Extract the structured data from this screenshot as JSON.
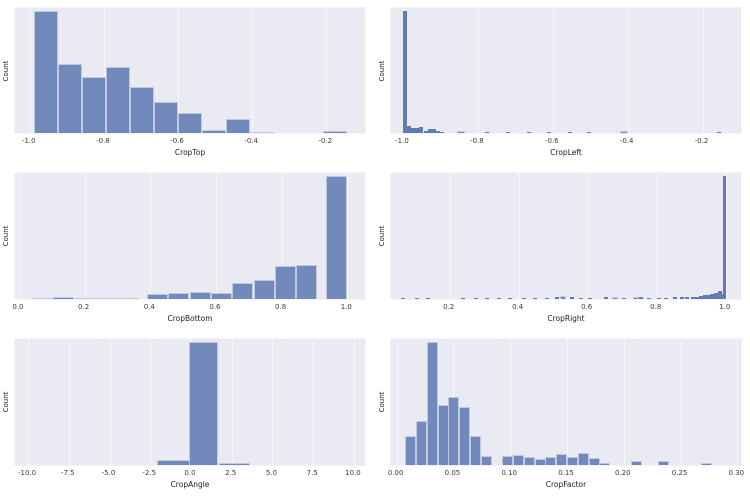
{
  "figure": {
    "type": "histogram-grid",
    "grid_shape": "3 rows x 2 cols",
    "bar_height_units": "fraction of axes height (y axis shows no numeric tick labels, only the label 'Count')",
    "colors": {
      "figure_bg": "#ffffff",
      "axes_bg": "#e9eaf2",
      "grid": "#ffffff",
      "bar_fill": "#7289bc",
      "bar_fill_narrow": "#617cb2",
      "bar_edge": "rgba(255,255,255,0.55)",
      "tick_text": "#3a3a3a",
      "label_text": "#1c1c1c"
    }
  },
  "chart_data": [
    {
      "type": "bar",
      "subtype": "histogram",
      "xlabel": "CropTop",
      "ylabel": "Count",
      "grid": "vertical gridlines only",
      "legend": null,
      "xlim": [
        -1.04,
        -0.09
      ],
      "xticks": [
        {
          "v": -1.0,
          "label": "-1.0"
        },
        {
          "v": -0.8,
          "label": "-0.8"
        },
        {
          "v": -0.6,
          "label": "-0.6"
        },
        {
          "v": -0.4,
          "label": "-0.4"
        },
        {
          "v": -0.2,
          "label": "-0.2"
        }
      ],
      "bars": [
        [
          -0.99,
          -0.925,
          0.96
        ],
        [
          -0.925,
          -0.86,
          0.54
        ],
        [
          -0.86,
          -0.795,
          0.44
        ],
        [
          -0.795,
          -0.73,
          0.52
        ],
        [
          -0.73,
          -0.665,
          0.36
        ],
        [
          -0.665,
          -0.6,
          0.245
        ],
        [
          -0.6,
          -0.535,
          0.16
        ],
        [
          -0.535,
          -0.47,
          0.02
        ],
        [
          -0.47,
          -0.405,
          0.11
        ],
        [
          -0.405,
          -0.34,
          0.01
        ],
        [
          -0.21,
          -0.145,
          0.015
        ]
      ]
    },
    {
      "type": "bar",
      "subtype": "histogram",
      "xlabel": "CropLeft",
      "ylabel": "Count",
      "grid": "vertical gridlines only",
      "legend": null,
      "xlim": [
        -1.032,
        -0.092
      ],
      "xticks": [
        {
          "v": -1.0,
          "label": "-1.0"
        },
        {
          "v": -0.8,
          "label": "-0.8"
        },
        {
          "v": -0.6,
          "label": "-0.6"
        },
        {
          "v": -0.4,
          "label": "-0.4"
        },
        {
          "v": -0.2,
          "label": "-0.2"
        }
      ],
      "bars": [
        [
          -1.0,
          -0.989,
          0.96
        ],
        [
          -0.989,
          -0.978,
          0.052
        ],
        [
          -0.978,
          -0.967,
          0.038
        ],
        [
          -0.967,
          -0.956,
          0.042
        ],
        [
          -0.956,
          -0.945,
          0.05
        ],
        [
          -0.945,
          -0.934,
          0.018
        ],
        [
          -0.934,
          -0.923,
          0.028
        ],
        [
          -0.923,
          -0.912,
          0.034
        ],
        [
          -0.912,
          -0.901,
          0.015
        ],
        [
          -0.901,
          -0.89,
          0.008
        ],
        [
          -0.856,
          -0.834,
          0.013
        ],
        [
          -0.78,
          -0.769,
          0.008
        ],
        [
          -0.726,
          -0.715,
          0.008
        ],
        [
          -0.67,
          -0.659,
          0.008
        ],
        [
          -0.615,
          -0.604,
          0.006
        ],
        [
          -0.56,
          -0.549,
          0.008
        ],
        [
          -0.508,
          -0.497,
          0.006
        ],
        [
          -0.42,
          -0.398,
          0.013
        ],
        [
          -0.162,
          -0.151,
          0.008
        ]
      ]
    },
    {
      "type": "bar",
      "subtype": "histogram",
      "xlabel": "CropBottom",
      "ylabel": "Count",
      "grid": "vertical gridlines only",
      "legend": null,
      "xlim": [
        -0.012,
        1.06
      ],
      "xticks": [
        {
          "v": 0.0,
          "label": "0.0"
        },
        {
          "v": 0.2,
          "label": "0.2"
        },
        {
          "v": 0.4,
          "label": "0.4"
        },
        {
          "v": 0.6,
          "label": "0.6"
        },
        {
          "v": 0.8,
          "label": "0.8"
        },
        {
          "v": 1.0,
          "label": "1.0"
        }
      ],
      "bars": [
        [
          0.04,
          0.105,
          0.008
        ],
        [
          0.105,
          0.17,
          0.016
        ],
        [
          0.17,
          0.235,
          0.006
        ],
        [
          0.235,
          0.3,
          0.005
        ],
        [
          0.3,
          0.365,
          0.005
        ],
        [
          0.39,
          0.455,
          0.04
        ],
        [
          0.455,
          0.52,
          0.048
        ],
        [
          0.52,
          0.585,
          0.052
        ],
        [
          0.585,
          0.65,
          0.048
        ],
        [
          0.65,
          0.715,
          0.125
        ],
        [
          0.715,
          0.78,
          0.148
        ],
        [
          0.78,
          0.845,
          0.255
        ],
        [
          0.845,
          0.91,
          0.268
        ],
        [
          0.935,
          1.0,
          0.96
        ]
      ]
    },
    {
      "type": "bar",
      "subtype": "histogram",
      "xlabel": "CropRight",
      "ylabel": "Count",
      "grid": "vertical gridlines only",
      "legend": null,
      "xlim": [
        0.03,
        1.05
      ],
      "xticks": [
        {
          "v": 0.2,
          "label": "0.2"
        },
        {
          "v": 0.4,
          "label": "0.4"
        },
        {
          "v": 0.6,
          "label": "0.6"
        },
        {
          "v": 0.8,
          "label": "0.8"
        },
        {
          "v": 1.0,
          "label": "1.0"
        }
      ],
      "bars": [
        [
          0.06,
          0.071,
          0.006
        ],
        [
          0.1,
          0.111,
          0.008
        ],
        [
          0.13,
          0.141,
          0.006
        ],
        [
          0.234,
          0.245,
          0.008
        ],
        [
          0.27,
          0.281,
          0.006
        ],
        [
          0.302,
          0.313,
          0.008
        ],
        [
          0.336,
          0.347,
          0.006
        ],
        [
          0.37,
          0.381,
          0.008
        ],
        [
          0.41,
          0.421,
          0.01
        ],
        [
          0.442,
          0.453,
          0.008
        ],
        [
          0.476,
          0.487,
          0.01
        ],
        [
          0.506,
          0.517,
          0.012
        ],
        [
          0.52,
          0.536,
          0.022
        ],
        [
          0.55,
          0.561,
          0.012
        ],
        [
          0.576,
          0.587,
          0.01
        ],
        [
          0.602,
          0.613,
          0.008
        ],
        [
          0.648,
          0.659,
          0.012
        ],
        [
          0.67,
          0.686,
          0.014
        ],
        [
          0.7,
          0.711,
          0.01
        ],
        [
          0.73,
          0.746,
          0.015
        ],
        [
          0.75,
          0.761,
          0.012
        ],
        [
          0.772,
          0.783,
          0.01
        ],
        [
          0.8,
          0.811,
          0.01
        ],
        [
          0.822,
          0.833,
          0.008
        ],
        [
          0.846,
          0.857,
          0.012
        ],
        [
          0.866,
          0.877,
          0.014
        ],
        [
          0.882,
          0.893,
          0.016
        ],
        [
          0.9,
          0.911,
          0.012
        ],
        [
          0.911,
          0.922,
          0.016
        ],
        [
          0.922,
          0.933,
          0.02
        ],
        [
          0.933,
          0.944,
          0.028
        ],
        [
          0.944,
          0.955,
          0.033
        ],
        [
          0.955,
          0.966,
          0.04
        ],
        [
          0.966,
          0.977,
          0.05
        ],
        [
          0.977,
          0.988,
          0.06
        ],
        [
          0.988,
          0.992,
          0.04
        ],
        [
          0.992,
          1.002,
          0.96
        ]
      ]
    },
    {
      "type": "bar",
      "subtype": "histogram",
      "xlabel": "CropAngle",
      "ylabel": "Count",
      "grid": "vertical gridlines only",
      "legend": null,
      "xlim": [
        -10.8,
        10.8
      ],
      "xticks": [
        {
          "v": -10.0,
          "label": "-10.0"
        },
        {
          "v": -7.5,
          "label": "-7.5"
        },
        {
          "v": -5.0,
          "label": "-5.0"
        },
        {
          "v": -2.5,
          "label": "-2.5"
        },
        {
          "v": 0.0,
          "label": "0.0"
        },
        {
          "v": 2.5,
          "label": "2.5"
        },
        {
          "v": 5.0,
          "label": "5.0"
        },
        {
          "v": 7.5,
          "label": "7.5"
        },
        {
          "v": 10.0,
          "label": "10.0"
        }
      ],
      "bars": [
        [
          -2.1,
          -0.1,
          0.04
        ],
        [
          -0.1,
          1.7,
          0.96
        ],
        [
          1.7,
          3.6,
          0.013
        ]
      ]
    },
    {
      "type": "bar",
      "subtype": "histogram",
      "xlabel": "CropFactor",
      "ylabel": "Count",
      "grid": "vertical gridlines only",
      "legend": null,
      "xlim": [
        -0.005,
        0.305
      ],
      "xticks": [
        {
          "v": 0.0,
          "label": "0.00"
        },
        {
          "v": 0.05,
          "label": "0.05"
        },
        {
          "v": 0.1,
          "label": "0.10"
        },
        {
          "v": 0.15,
          "label": "0.15"
        },
        {
          "v": 0.2,
          "label": "0.20"
        },
        {
          "v": 0.25,
          "label": "0.25"
        },
        {
          "v": 0.3,
          "label": "0.30"
        }
      ],
      "bars": [
        [
          0.0075,
          0.017,
          0.23
        ],
        [
          0.017,
          0.0265,
          0.345
        ],
        [
          0.0265,
          0.036,
          0.96
        ],
        [
          0.036,
          0.0455,
          0.465
        ],
        [
          0.0455,
          0.055,
          0.535
        ],
        [
          0.055,
          0.0645,
          0.45
        ],
        [
          0.0645,
          0.074,
          0.23
        ],
        [
          0.074,
          0.0835,
          0.07
        ],
        [
          0.093,
          0.1025,
          0.072
        ],
        [
          0.1025,
          0.112,
          0.078
        ],
        [
          0.112,
          0.1215,
          0.062
        ],
        [
          0.1215,
          0.131,
          0.045
        ],
        [
          0.131,
          0.1405,
          0.062
        ],
        [
          0.1405,
          0.15,
          0.085
        ],
        [
          0.15,
          0.1595,
          0.06
        ],
        [
          0.1595,
          0.169,
          0.095
        ],
        [
          0.169,
          0.1785,
          0.058
        ],
        [
          0.1785,
          0.188,
          0.014
        ],
        [
          0.2065,
          0.216,
          0.035
        ],
        [
          0.2305,
          0.24,
          0.035
        ],
        [
          0.268,
          0.2775,
          0.012
        ]
      ]
    }
  ]
}
